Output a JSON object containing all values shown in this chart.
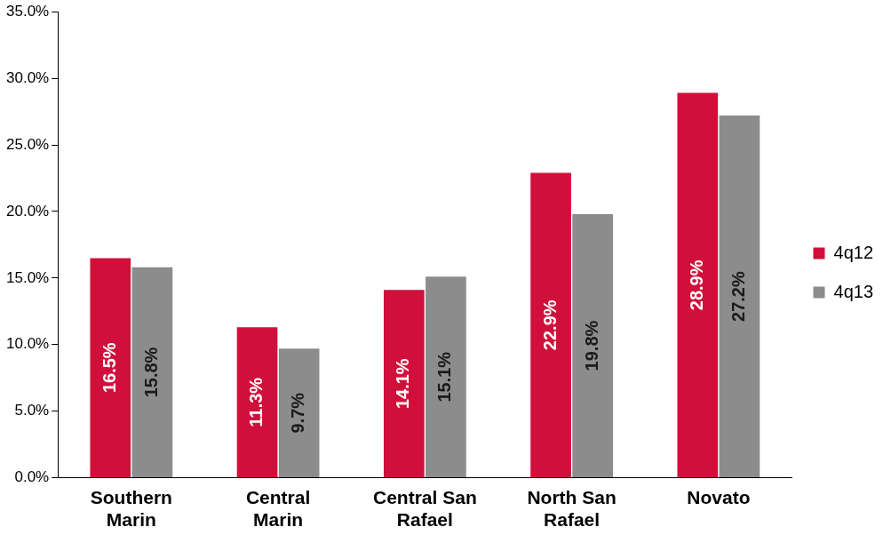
{
  "chart_data": {
    "type": "bar",
    "categories": [
      "Southern Marin",
      "Central Marin",
      "Central San Rafael",
      "North San Rafael",
      "Novato"
    ],
    "series": [
      {
        "name": "4q12",
        "color": "#d0103a",
        "values": [
          16.5,
          11.3,
          14.1,
          22.9,
          28.9
        ],
        "value_labels": [
          "16.5%",
          "11.3%",
          "14.1%",
          "22.9%",
          "28.9%"
        ]
      },
      {
        "name": "4q13",
        "color": "#8c8c8c",
        "values": [
          15.8,
          9.7,
          15.1,
          19.8,
          27.2
        ],
        "value_labels": [
          "15.8%",
          "9.7%",
          "15.1%",
          "19.8%",
          "27.2%"
        ]
      }
    ],
    "ylim": [
      0,
      35
    ],
    "yticks": [
      {
        "value": 0,
        "label": "0.0%"
      },
      {
        "value": 5,
        "label": "5.0%"
      },
      {
        "value": 10,
        "label": "10.0%"
      },
      {
        "value": 15,
        "label": "15.0%"
      },
      {
        "value": 20,
        "label": "20.0%"
      },
      {
        "value": 25,
        "label": "25.0%"
      },
      {
        "value": 30,
        "label": "30.0%"
      },
      {
        "value": 35,
        "label": "35.0%"
      }
    ],
    "grid": false,
    "legend": "right"
  }
}
